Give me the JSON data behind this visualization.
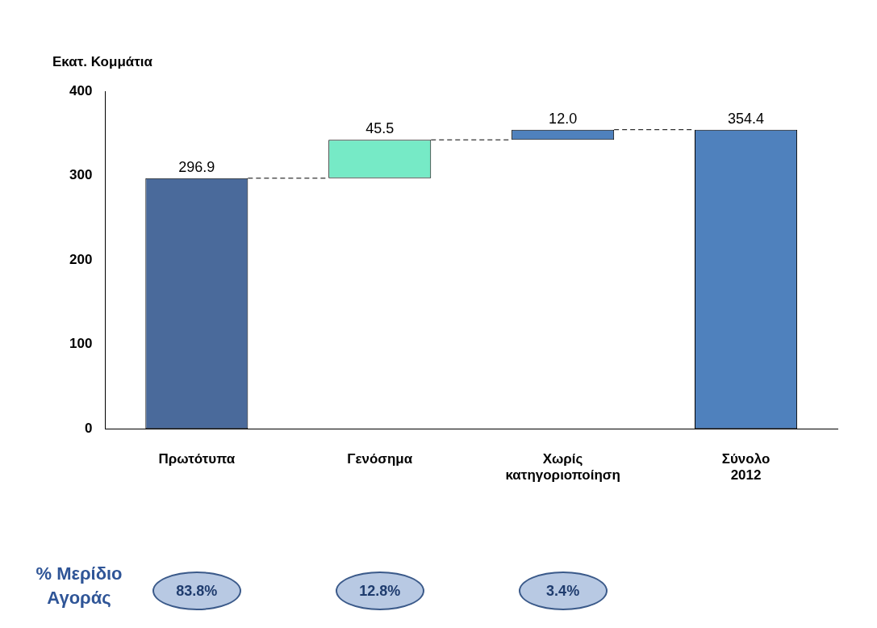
{
  "chart_data": {
    "type": "bar",
    "ylabel": "Εκατ. Κομμάτια",
    "categories": [
      "Πρωτότυπα",
      "Γενόσημα",
      "Χωρίς κατηγοριοποίηση",
      "Σύνολο 2012"
    ],
    "values": [
      296.9,
      45.5,
      12.0,
      354.4
    ],
    "base": [
      0,
      296.9,
      342.4,
      0
    ],
    "colors": [
      "#4a6a9b",
      "#76eac6",
      "#4f81bd",
      "#4f81bd"
    ],
    "value_labels": [
      "296.9",
      "45.5",
      "12.0",
      "354.4"
    ],
    "ylim": [
      0,
      400
    ],
    "yticks": [
      0,
      100,
      200,
      300,
      400
    ],
    "grid": false,
    "legend": false,
    "ref_lines": [
      {
        "axis": "y",
        "value": 296.9,
        "color": "#000000",
        "line_style": "dashed"
      },
      {
        "axis": "y",
        "value": 342.4,
        "color": "#000000",
        "line_style": "dashed"
      },
      {
        "axis": "y",
        "value": 354.4,
        "color": "#000000",
        "line_style": "dashed"
      }
    ],
    "annotations": [
      "% Μερίδιο Αγοράς",
      "83.8%",
      "12.8%",
      "3.4%"
    ]
  }
}
